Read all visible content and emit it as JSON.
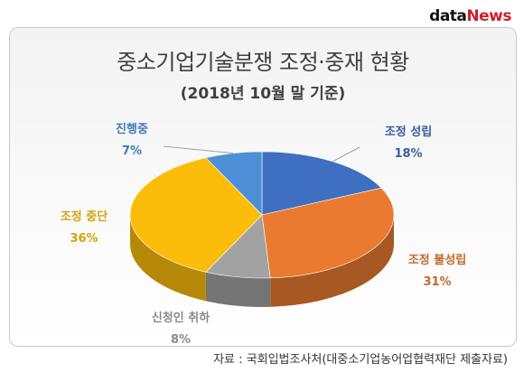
{
  "brand": {
    "part1": "data",
    "part2": "News"
  },
  "source": "자료 : 국회입법조사처(대중소기업농어업협력재단 제출자료)",
  "colors": {
    "조정 성립": "#3f6fc0",
    "조정 불성립": "#ea7a30",
    "신청인 취하": "#a2a2a2",
    "조정 중단": "#fbbd0a",
    "진행중": "#4d8fd6"
  },
  "chart_data": {
    "type": "pie",
    "title": "중소기업기술분쟁 조정·중재 현황",
    "subtitle": "(2018년 10월 말 기준)",
    "slices": [
      {
        "label": "조정 성립",
        "value": 18,
        "value_text": "18%"
      },
      {
        "label": "조정 불성립",
        "value": 31,
        "value_text": "31%"
      },
      {
        "label": "신청인 취하",
        "value": 8,
        "value_text": "8%"
      },
      {
        "label": "조정 중단",
        "value": 36,
        "value_text": "36%"
      },
      {
        "label": "진행중",
        "value": 7,
        "value_text": "7%"
      }
    ]
  }
}
